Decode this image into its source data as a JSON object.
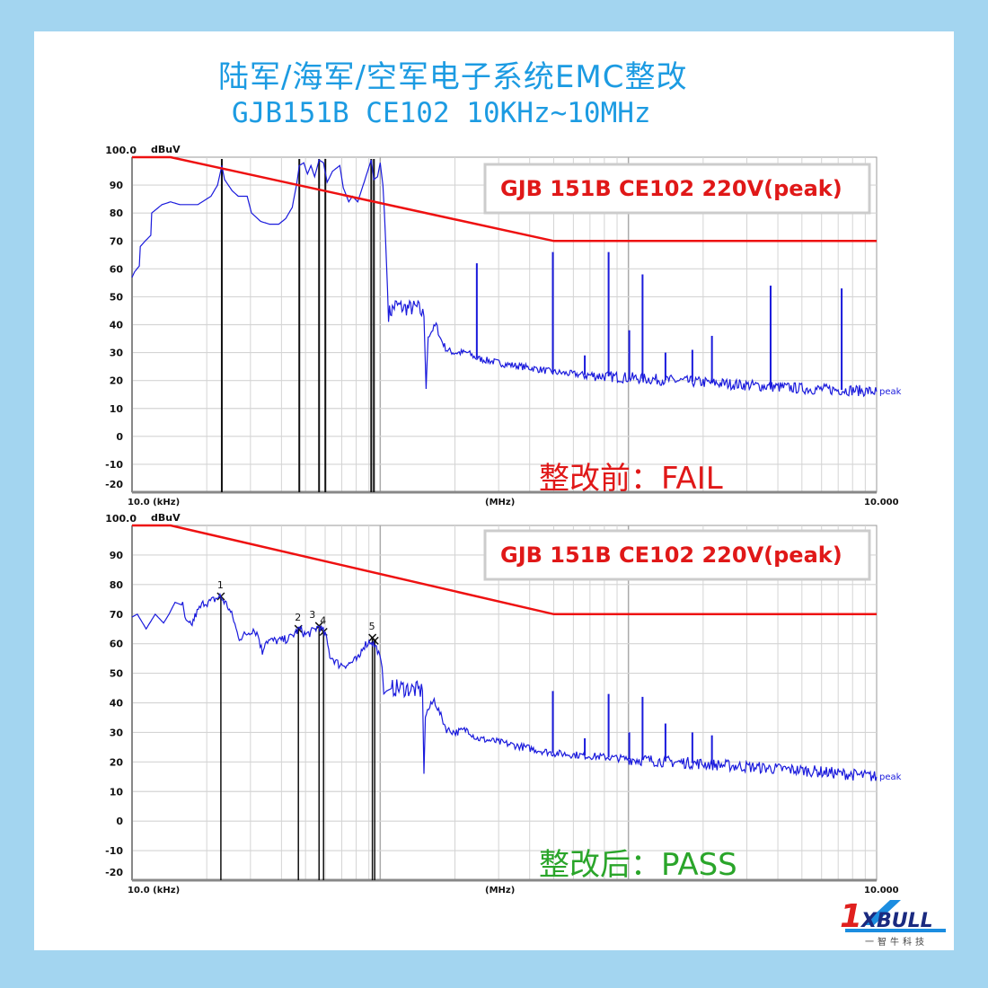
{
  "header": {
    "title": "陆军/海军/空军电子系统EMC整改",
    "subtitle": "GJB151B CE102 10KHz~10MHz"
  },
  "logo": {
    "text": "1XBULL",
    "tagline": "一智牛科技",
    "mark": "™"
  },
  "colors": {
    "trace": "#1a1adc",
    "limit": "#ee1111",
    "fail": "#e01818",
    "pass": "#2aa52a",
    "title": "#1c9be2"
  },
  "chart_data": [
    {
      "type": "line",
      "x_scale": "log",
      "xlim": [
        10,
        10000
      ],
      "ylim": [
        -20,
        100
      ],
      "grid": true,
      "ylabel": "dBuV",
      "y_top_label": "100.0",
      "yticks": [
        90,
        80,
        70,
        60,
        50,
        40,
        30,
        20,
        10,
        0,
        -10,
        -20
      ],
      "xtick_labels": {
        "left": "10.0 (kHz)",
        "mid": "(MHz)",
        "right": "10.000"
      },
      "legend": "GJB 151B CE102 220V(peak)",
      "legend_position": "top-right",
      "trace_label": "peak",
      "annotation": "整改前：FAIL",
      "annotation_status": "fail",
      "limit": [
        [
          10,
          100
        ],
        [
          14.3,
          100
        ],
        [
          500,
          70
        ],
        [
          10000,
          70
        ]
      ],
      "trace": [
        [
          10,
          57
        ],
        [
          10.25,
          59
        ],
        [
          10.7,
          61
        ],
        [
          10.8,
          68
        ],
        [
          11.3,
          70
        ],
        [
          11.9,
          72
        ],
        [
          12,
          80
        ],
        [
          13.2,
          83
        ],
        [
          14.3,
          84
        ],
        [
          15.6,
          83
        ],
        [
          18.4,
          83
        ],
        [
          20.8,
          86
        ],
        [
          22.1,
          90
        ],
        [
          23,
          97
        ],
        [
          23.6,
          92
        ],
        [
          25.3,
          88
        ],
        [
          26.8,
          86
        ],
        [
          29.1,
          86
        ],
        [
          30.3,
          80
        ],
        [
          33,
          77
        ],
        [
          35.8,
          76
        ],
        [
          39,
          76
        ],
        [
          41.6,
          78
        ],
        [
          44.2,
          82
        ],
        [
          46,
          90
        ],
        [
          47.2,
          97
        ],
        [
          49.2,
          98
        ],
        [
          50.9,
          94
        ],
        [
          52.6,
          97
        ],
        [
          54.4,
          93
        ],
        [
          56.7,
          99
        ],
        [
          59.1,
          98
        ],
        [
          61.1,
          91
        ],
        [
          64.3,
          95
        ],
        [
          68.7,
          97
        ],
        [
          71,
          89
        ],
        [
          74.7,
          84
        ],
        [
          77.2,
          86
        ],
        [
          81.2,
          84
        ],
        [
          83.9,
          88
        ],
        [
          86.1,
          91
        ],
        [
          89.7,
          96
        ],
        [
          92,
          99
        ],
        [
          94.3,
          92
        ],
        [
          97.5,
          93
        ],
        [
          100,
          98
        ],
        [
          102.5,
          90
        ],
        [
          104,
          80
        ],
        [
          106,
          62
        ],
        [
          108,
          44
        ],
        [
          111,
          45
        ],
        [
          115,
          47
        ],
        [
          125,
          46
        ],
        [
          142,
          46
        ],
        [
          150,
          43
        ],
        [
          153,
          17
        ],
        [
          156,
          36
        ],
        [
          168,
          40
        ],
        [
          175,
          35
        ],
        [
          185,
          31
        ],
        [
          198,
          30
        ],
        [
          225,
          30
        ],
        [
          244,
          28
        ],
        [
          277,
          27
        ],
        [
          314,
          26
        ],
        [
          371,
          25
        ],
        [
          438,
          24
        ],
        [
          496,
          23
        ],
        [
          665,
          22
        ],
        [
          1008,
          21
        ],
        [
          1530,
          20
        ],
        [
          2322,
          19
        ],
        [
          3525,
          18
        ],
        [
          5350,
          17
        ],
        [
          8120,
          16.5
        ],
        [
          10000,
          16
        ]
      ],
      "spikes": [
        [
          245,
          62
        ],
        [
          496,
          66
        ],
        [
          667,
          29
        ],
        [
          832,
          66
        ],
        [
          1008,
          38
        ],
        [
          1140,
          58
        ],
        [
          1410,
          30
        ],
        [
          1810,
          31
        ],
        [
          2170,
          36
        ],
        [
          3740,
          54
        ],
        [
          7230,
          53
        ]
      ],
      "markers": [
        {
          "f": 23,
          "label": ""
        },
        {
          "f": 47.2,
          "label": ""
        },
        {
          "f": 56.7,
          "label": ""
        },
        {
          "f": 60.1,
          "label": ""
        },
        {
          "f": 92,
          "label": ""
        },
        {
          "f": 94.3,
          "label": ""
        }
      ]
    },
    {
      "type": "line",
      "x_scale": "log",
      "xlim": [
        10,
        10000
      ],
      "ylim": [
        -20,
        100
      ],
      "grid": true,
      "ylabel": "dBuV",
      "y_top_label": "100.0",
      "yticks": [
        90,
        80,
        70,
        60,
        50,
        40,
        30,
        20,
        10,
        0,
        -10,
        -20
      ],
      "xtick_labels": {
        "left": "10.0 (kHz)",
        "mid": "(MHz)",
        "right": "10.000"
      },
      "legend": "GJB 151B CE102 220V(peak)",
      "legend_position": "top-right",
      "trace_label": "peak",
      "annotation": "整改后：PASS",
      "annotation_status": "pass",
      "limit": [
        [
          10,
          100
        ],
        [
          14.3,
          100
        ],
        [
          500,
          70
        ],
        [
          10000,
          70
        ]
      ],
      "trace": [
        [
          10,
          69
        ],
        [
          10.5,
          70
        ],
        [
          11.4,
          65
        ],
        [
          12.4,
          70
        ],
        [
          13.4,
          67
        ],
        [
          14.1,
          70
        ],
        [
          14.9,
          74
        ],
        [
          16,
          73
        ],
        [
          16.5,
          67
        ],
        [
          17.3,
          66
        ],
        [
          18.1,
          70
        ],
        [
          19.5,
          74
        ],
        [
          20.5,
          74
        ],
        [
          22.6,
          76
        ],
        [
          24.2,
          73
        ],
        [
          25.7,
          68
        ],
        [
          26.8,
          62
        ],
        [
          28.6,
          63
        ],
        [
          30.8,
          65
        ],
        [
          32.2,
          63
        ],
        [
          33.5,
          57
        ],
        [
          34.4,
          61
        ],
        [
          36.7,
          61
        ],
        [
          39.9,
          61
        ],
        [
          43.4,
          62
        ],
        [
          47.2,
          65
        ],
        [
          50,
          63
        ],
        [
          53,
          64
        ],
        [
          56.7,
          66
        ],
        [
          60.1,
          63
        ],
        [
          62.7,
          56
        ],
        [
          68.1,
          53
        ],
        [
          74.1,
          53
        ],
        [
          77.9,
          54
        ],
        [
          82.5,
          55
        ],
        [
          84.6,
          59
        ],
        [
          92,
          61
        ],
        [
          97.5,
          58
        ],
        [
          101.7,
          52
        ],
        [
          103.4,
          43
        ],
        [
          106,
          44
        ],
        [
          112,
          45
        ],
        [
          125,
          45
        ],
        [
          148,
          44
        ],
        [
          150,
          16
        ],
        [
          152,
          36
        ],
        [
          165,
          41
        ],
        [
          185,
          31
        ],
        [
          201,
          30
        ],
        [
          225,
          31
        ],
        [
          244,
          28
        ],
        [
          289,
          27
        ],
        [
          496,
          23
        ],
        [
          1008,
          21
        ],
        [
          2322,
          19
        ],
        [
          5350,
          17
        ],
        [
          10000,
          15
        ]
      ],
      "spikes": [
        [
          496,
          44
        ],
        [
          667,
          28
        ],
        [
          832,
          43
        ],
        [
          1008,
          30
        ],
        [
          1140,
          42
        ],
        [
          1410,
          33
        ],
        [
          1810,
          30
        ],
        [
          2170,
          29
        ]
      ],
      "markers": [
        {
          "f": 22.8,
          "label": "1",
          "y": 76
        },
        {
          "f": 46.8,
          "label": "2",
          "y": 65
        },
        {
          "f": 56.7,
          "label": "3",
          "y": 66
        },
        {
          "f": 59.1,
          "label": "4",
          "y": 64
        },
        {
          "f": 93,
          "label": "5",
          "y": 62
        },
        {
          "f": 95,
          "label": "",
          "y": 61
        }
      ]
    }
  ]
}
